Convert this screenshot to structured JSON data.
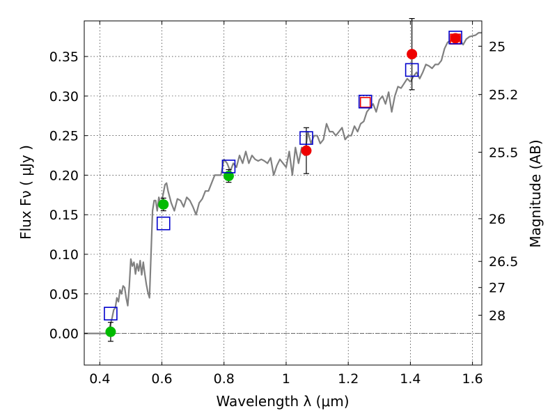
{
  "chart_data": {
    "type": "scatter",
    "xlabel": "Wavelength  λ (μm)",
    "ylabel": "Flux  Fν  ( μJy )",
    "y2label": "Magnitude (AB)",
    "xlim": [
      0.35,
      1.63
    ],
    "ylim": [
      -0.04,
      0.395
    ],
    "grid": true,
    "xticks": [
      0.4,
      0.6,
      0.8,
      1.0,
      1.2,
      1.4,
      1.6
    ],
    "xtick_labels": [
      "0.4",
      "0.6",
      "0.8",
      "1",
      "1.2",
      "1.4",
      "1.6"
    ],
    "yticks": [
      0.0,
      0.05,
      0.1,
      0.15,
      0.2,
      0.25,
      0.3,
      0.35
    ],
    "ytick_labels": [
      "0.00",
      "0.05",
      "0.10",
      "0.15",
      "0.20",
      "0.25",
      "0.30",
      "0.35"
    ],
    "mag_ticks": [
      {
        "label": "25",
        "flux": 0.363
      },
      {
        "label": "25.2",
        "flux": 0.302
      },
      {
        "label": "25.5",
        "flux": 0.229
      },
      {
        "label": "26",
        "flux": 0.145
      },
      {
        "label": "26.5",
        "flux": 0.091
      },
      {
        "label": "27",
        "flux": 0.058
      },
      {
        "label": "28",
        "flux": 0.023
      }
    ],
    "series": [
      {
        "name": "model spectrum",
        "kind": "line",
        "color": "#808080",
        "x": [
          0.35,
          0.42,
          0.43,
          0.44,
          0.445,
          0.45,
          0.455,
          0.46,
          0.465,
          0.47,
          0.475,
          0.48,
          0.485,
          0.49,
          0.495,
          0.5,
          0.505,
          0.51,
          0.515,
          0.52,
          0.525,
          0.53,
          0.535,
          0.54,
          0.545,
          0.55,
          0.555,
          0.56,
          0.565,
          0.57,
          0.575,
          0.58,
          0.585,
          0.59,
          0.595,
          0.6,
          0.605,
          0.61,
          0.615,
          0.62,
          0.63,
          0.64,
          0.65,
          0.66,
          0.67,
          0.68,
          0.69,
          0.7,
          0.71,
          0.72,
          0.73,
          0.74,
          0.75,
          0.76,
          0.77,
          0.78,
          0.79,
          0.8,
          0.81,
          0.82,
          0.83,
          0.84,
          0.85,
          0.86,
          0.87,
          0.88,
          0.89,
          0.9,
          0.91,
          0.92,
          0.93,
          0.94,
          0.95,
          0.96,
          0.97,
          0.98,
          0.99,
          1.0,
          1.01,
          1.02,
          1.03,
          1.04,
          1.05,
          1.06,
          1.07,
          1.08,
          1.09,
          1.1,
          1.11,
          1.12,
          1.13,
          1.14,
          1.15,
          1.16,
          1.17,
          1.18,
          1.19,
          1.2,
          1.21,
          1.22,
          1.23,
          1.24,
          1.25,
          1.26,
          1.27,
          1.28,
          1.29,
          1.3,
          1.31,
          1.32,
          1.33,
          1.34,
          1.35,
          1.36,
          1.37,
          1.38,
          1.39,
          1.4,
          1.41,
          1.42,
          1.43,
          1.44,
          1.45,
          1.46,
          1.47,
          1.48,
          1.49,
          1.5,
          1.51,
          1.52,
          1.53,
          1.54,
          1.55,
          1.56,
          1.57,
          1.58,
          1.59,
          1.6,
          1.61,
          1.62,
          1.63
        ],
        "y": [
          0.0,
          0.0,
          0.005,
          0.02,
          0.03,
          0.032,
          0.045,
          0.04,
          0.055,
          0.05,
          0.06,
          0.058,
          0.045,
          0.035,
          0.06,
          0.094,
          0.085,
          0.09,
          0.075,
          0.088,
          0.079,
          0.092,
          0.074,
          0.09,
          0.075,
          0.062,
          0.052,
          0.045,
          0.1,
          0.155,
          0.168,
          0.168,
          0.155,
          0.172,
          0.165,
          0.168,
          0.178,
          0.188,
          0.19,
          0.18,
          0.165,
          0.155,
          0.17,
          0.168,
          0.16,
          0.172,
          0.168,
          0.16,
          0.15,
          0.165,
          0.17,
          0.18,
          0.18,
          0.19,
          0.2,
          0.2,
          0.2,
          0.22,
          0.215,
          0.205,
          0.215,
          0.21,
          0.225,
          0.215,
          0.23,
          0.215,
          0.225,
          0.22,
          0.218,
          0.22,
          0.218,
          0.215,
          0.222,
          0.2,
          0.212,
          0.22,
          0.215,
          0.21,
          0.23,
          0.2,
          0.235,
          0.215,
          0.235,
          0.225,
          0.255,
          0.24,
          0.25,
          0.25,
          0.24,
          0.245,
          0.265,
          0.255,
          0.255,
          0.25,
          0.255,
          0.26,
          0.245,
          0.25,
          0.25,
          0.262,
          0.255,
          0.265,
          0.268,
          0.28,
          0.285,
          0.29,
          0.28,
          0.295,
          0.3,
          0.29,
          0.305,
          0.28,
          0.3,
          0.312,
          0.31,
          0.316,
          0.322,
          0.318,
          0.325,
          0.33,
          0.322,
          0.33,
          0.34,
          0.338,
          0.335,
          0.34,
          0.34,
          0.345,
          0.36,
          0.368,
          0.37,
          0.375,
          0.372,
          0.37,
          0.365,
          0.372,
          0.375,
          0.376,
          0.377,
          0.38,
          0.38
        ]
      },
      {
        "name": "green points",
        "kind": "marker",
        "color": "#00bb00",
        "x": [
          0.435,
          0.605,
          0.815
        ],
        "y": [
          0.002,
          0.163,
          0.199
        ],
        "yerr": [
          0.012,
          0.008,
          0.008
        ]
      },
      {
        "name": "red points",
        "kind": "marker",
        "color": "#ee0000",
        "x": [
          1.065,
          1.405,
          1.545
        ],
        "y": [
          0.231,
          0.353,
          0.373
        ],
        "yerr": [
          0.029,
          0.045,
          0.0
        ]
      },
      {
        "name": "red squares",
        "kind": "open-square",
        "color": "#ee0000",
        "x": [
          1.255,
          1.545
        ],
        "y": [
          0.292,
          0.372
        ]
      },
      {
        "name": "blue squares",
        "kind": "open-square",
        "color": "#0000cc",
        "x": [
          0.435,
          0.605,
          0.815,
          1.065,
          1.255,
          1.405,
          1.545
        ],
        "y": [
          0.025,
          0.139,
          0.211,
          0.247,
          0.293,
          0.333,
          0.374
        ]
      }
    ]
  }
}
